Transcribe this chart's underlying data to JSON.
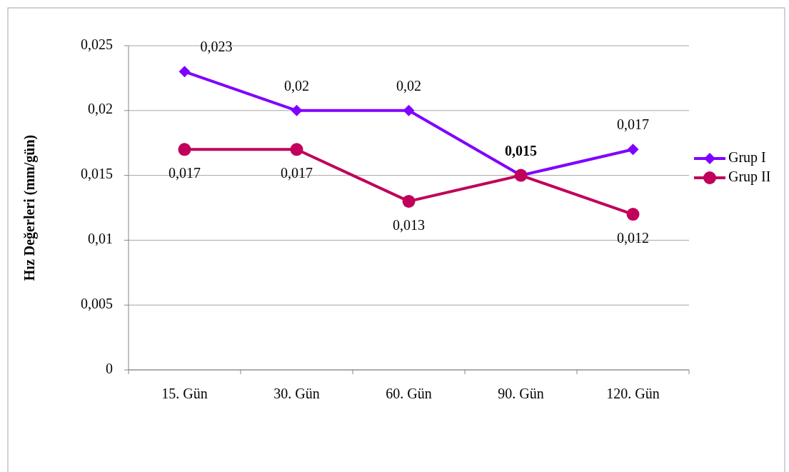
{
  "chart_data": {
    "type": "line",
    "ylabel": "Hız Değerleri (mm/gün)",
    "categories": [
      "15. Gün",
      "30. Gün",
      "60. Gün",
      "90. Gün",
      "120. Gün"
    ],
    "series": [
      {
        "name": "Grup I",
        "color": "#8000ff",
        "marker": "diamond",
        "values": [
          0.023,
          0.02,
          0.02,
          0.015,
          0.017
        ],
        "value_labels": [
          "0,023",
          "0,02",
          "0,02",
          "0,015",
          "0,017"
        ]
      },
      {
        "name": "Grup II",
        "color": "#c0005a",
        "marker": "circle",
        "values": [
          0.017,
          0.017,
          0.013,
          0.015,
          0.012
        ],
        "value_labels": [
          "0,017",
          "0,017",
          "0,013",
          null,
          "0,012"
        ]
      }
    ],
    "ylim": [
      0,
      0.025
    ],
    "yticks": [
      {
        "value": 0,
        "label": "0"
      },
      {
        "value": 0.005,
        "label": "0,005"
      },
      {
        "value": 0.01,
        "label": "0,01"
      },
      {
        "value": 0.015,
        "label": "0,015"
      },
      {
        "value": 0.02,
        "label": "0,02"
      },
      {
        "value": 0.025,
        "label": "0,025"
      }
    ],
    "grid": "y",
    "legend": "right"
  }
}
